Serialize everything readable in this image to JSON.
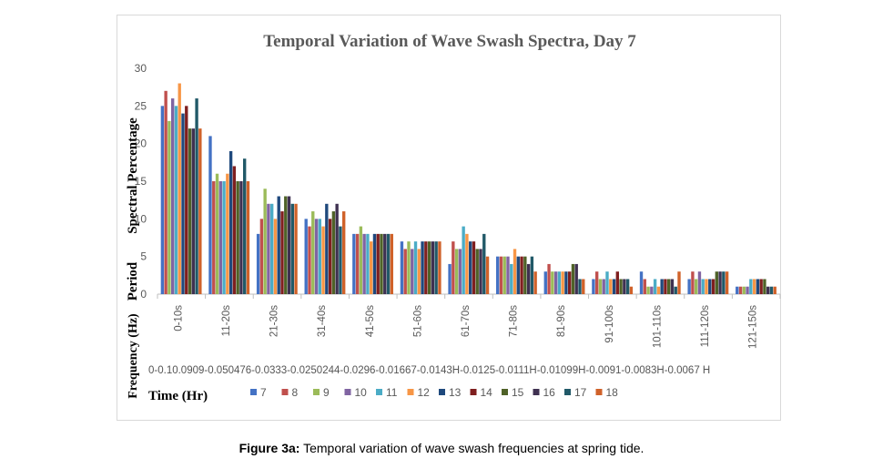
{
  "chart_data": {
    "type": "bar",
    "title": "Temporal Variation of Wave Swash Spectra, Day 7",
    "ylabel_lines": [
      "Spectral Percentage",
      "Period",
      "Frequency (Hz)"
    ],
    "xlabel": "Time (Hr)",
    "ylim": [
      0,
      30
    ],
    "yticks": [
      0,
      5,
      10,
      15,
      20,
      25,
      30
    ],
    "grid": false,
    "legend_position": "bottom",
    "categories": [
      "0-10s",
      "11-20s",
      "21-30s",
      "31-40s",
      "41-50s",
      "51-60s",
      "61-70s",
      "71-80s",
      "81-90s",
      "91-100s",
      "101-110s",
      "111-120s",
      "121-150s"
    ],
    "frequency_labels": [
      "0-0.1",
      "0.0909-0.05",
      "0.0476-0.0333",
      "0.0323-0.025",
      "0.0244-0.02",
      "0.0196-0.0167",
      "0.0164-0.0143",
      "0.0141-0.0125",
      "0.0123-0.0111",
      "0.011-0.01",
      "0.0099-0.0091",
      "0.009-0.0083",
      "0.0083-0.0067"
    ],
    "frequency_text": "0-0.10.0909-0.050476-0.0333-0.0250244-0.0296-0.01667-0.0143H-0.0125-0.0111H-0.01099H-0.0091-0.0083H-0.0067 H",
    "series": [
      {
        "name": "7",
        "color": "#4472c4",
        "values": [
          25,
          21,
          8,
          10,
          8,
          7,
          4,
          5,
          3,
          2,
          3,
          2,
          1
        ]
      },
      {
        "name": "8",
        "color": "#c0504d",
        "values": [
          27,
          15,
          10,
          9,
          8,
          6,
          7,
          5,
          4,
          3,
          2,
          3,
          1
        ]
      },
      {
        "name": "9",
        "color": "#9bbb59",
        "values": [
          23,
          16,
          14,
          11,
          9,
          7,
          6,
          5,
          3,
          2,
          1,
          2,
          1
        ]
      },
      {
        "name": "10",
        "color": "#8064a2",
        "values": [
          26,
          15,
          12,
          10,
          8,
          6,
          6,
          5,
          3,
          2,
          1,
          3,
          1
        ]
      },
      {
        "name": "11",
        "color": "#4bacc6",
        "values": [
          25,
          15,
          12,
          10,
          8,
          7,
          9,
          4,
          3,
          3,
          2,
          2,
          2
        ]
      },
      {
        "name": "12",
        "color": "#f79646",
        "values": [
          28,
          16,
          10,
          9,
          7,
          6,
          8,
          6,
          3,
          2,
          1,
          2,
          2
        ]
      },
      {
        "name": "13",
        "color": "#1f497d",
        "values": [
          24,
          19,
          13,
          12,
          8,
          7,
          7,
          5,
          3,
          2,
          2,
          2,
          2
        ]
      },
      {
        "name": "14",
        "color": "#7f1f1f",
        "values": [
          25,
          17,
          11,
          10,
          8,
          7,
          7,
          5,
          3,
          3,
          2,
          2,
          2
        ]
      },
      {
        "name": "15",
        "color": "#4f6228",
        "values": [
          22,
          15,
          13,
          11,
          8,
          7,
          6,
          5,
          4,
          2,
          2,
          3,
          2
        ]
      },
      {
        "name": "16",
        "color": "#3f3151",
        "values": [
          22,
          15,
          13,
          12,
          8,
          7,
          6,
          4,
          4,
          2,
          2,
          3,
          1
        ]
      },
      {
        "name": "17",
        "color": "#215968",
        "values": [
          26,
          18,
          12,
          9,
          8,
          7,
          8,
          5,
          2,
          2,
          1,
          3,
          1
        ]
      },
      {
        "name": "18",
        "color": "#d0622a",
        "values": [
          22,
          15,
          12,
          11,
          8,
          7,
          5,
          3,
          2,
          1,
          3,
          3,
          1
        ]
      }
    ]
  },
  "caption": {
    "label": "Figure 3a:",
    "text": " Temporal variation of wave swash frequencies at spring tide."
  }
}
